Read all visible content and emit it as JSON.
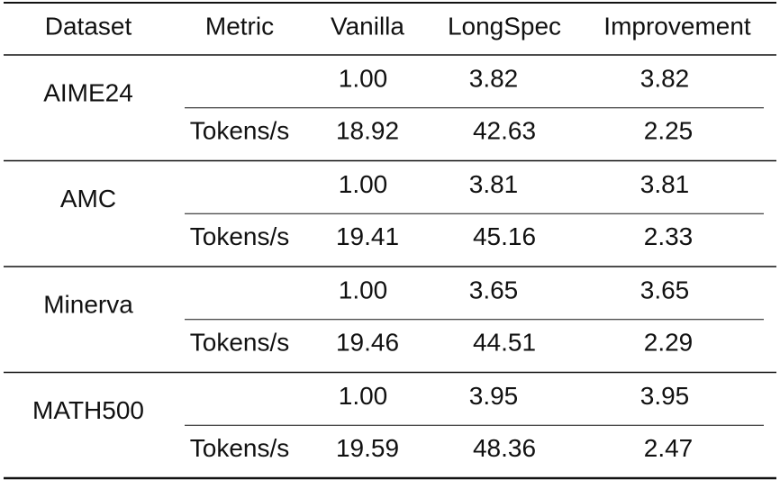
{
  "table": {
    "header": [
      "Dataset",
      "Metric",
      "Vanilla",
      "LongSpec",
      "Improvement"
    ],
    "groups": [
      {
        "dataset": "AIME24",
        "rows": [
          {
            "vanilla": "1.00",
            "longspec": "3.82",
            "improvement": "3.82"
          },
          {
            "metric": "Tokens/s",
            "vanilla": "18.92",
            "longspec": "42.63",
            "improvement": "2.25"
          }
        ]
      },
      {
        "dataset": "AMC",
        "rows": [
          {
            "vanilla": "1.00",
            "longspec": "3.81",
            "improvement": "3.81"
          },
          {
            "metric": "Tokens/s",
            "vanilla": "19.41",
            "longspec": "45.16",
            "improvement": "2.33"
          }
        ]
      },
      {
        "dataset": "Minerva",
        "rows": [
          {
            "vanilla": "1.00",
            "longspec": "3.65",
            "improvement": "3.65"
          },
          {
            "metric": "Tokens/s",
            "vanilla": "19.46",
            "longspec": "44.51",
            "improvement": "2.29"
          }
        ]
      },
      {
        "dataset": "MATH500",
        "rows": [
          {
            "vanilla": "1.00",
            "longspec": "3.95",
            "improvement": "3.95"
          },
          {
            "metric": "Tokens/s",
            "vanilla": "19.59",
            "longspec": "48.36",
            "improvement": "2.47"
          }
        ]
      }
    ]
  }
}
